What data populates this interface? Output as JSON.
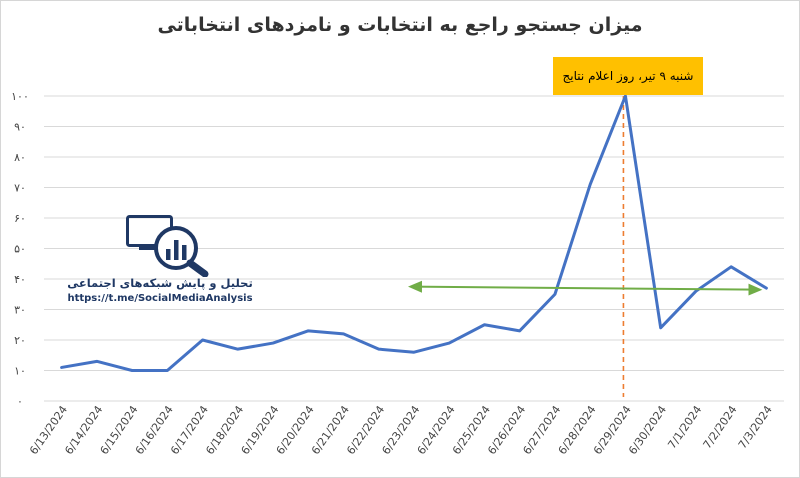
{
  "chart_data": {
    "type": "line",
    "title": "میزان جستجو راجع به انتخابات و نامزدهای انتخاباتی",
    "xlabel": "",
    "ylabel": "",
    "ylim": [
      0,
      100
    ],
    "yticks": [
      0,
      10,
      20,
      30,
      40,
      50,
      60,
      70,
      80,
      90,
      100
    ],
    "ytick_labels": [
      "۰",
      "۱۰",
      "۲۰",
      "۳۰",
      "۴۰",
      "۵۰",
      "۶۰",
      "۷۰",
      "۸۰",
      "۹۰",
      "۱۰۰"
    ],
    "grid": true,
    "categories": [
      "6/13/2024",
      "6/14/2024",
      "6/15/2024",
      "6/16/2024",
      "6/17/2024",
      "6/18/2024",
      "6/19/2024",
      "6/20/2024",
      "6/21/2024",
      "6/22/2024",
      "6/23/2024",
      "6/24/2024",
      "6/25/2024",
      "6/26/2024",
      "6/27/2024",
      "6/28/2024",
      "6/29/2024",
      "6/30/2024",
      "7/1/2024",
      "7/2/2024",
      "7/3/2024"
    ],
    "series": [
      {
        "values": [
          11,
          13,
          10,
          10,
          20,
          17,
          19,
          23,
          22,
          17,
          16,
          19,
          25,
          23,
          35,
          71,
          100,
          24,
          36,
          44,
          37
        ]
      }
    ],
    "trend_arrow": {
      "from": {
        "x": "6/23/2024",
        "y": 37.5
      },
      "to": {
        "x": "7/3/2024",
        "y": 36.5
      }
    },
    "annotation": {
      "x": "6/29/2024",
      "text": "شنبه ۹ تیر، روز اعلام نتایج"
    },
    "colors": {
      "series": "#4472c4",
      "trend": "#70ad47",
      "marker_line": "#ed7d31",
      "callout": "#ffc000",
      "grid": "#d9d9d9",
      "brand": "#1f3864"
    }
  },
  "branding": {
    "name": "تحلیل و پایش شبکه‌های اجتماعی",
    "url": "https://t.me/SocialMediaAnalysis",
    "logo_icon": "monitor-magnifier-bar-chart-icon"
  }
}
